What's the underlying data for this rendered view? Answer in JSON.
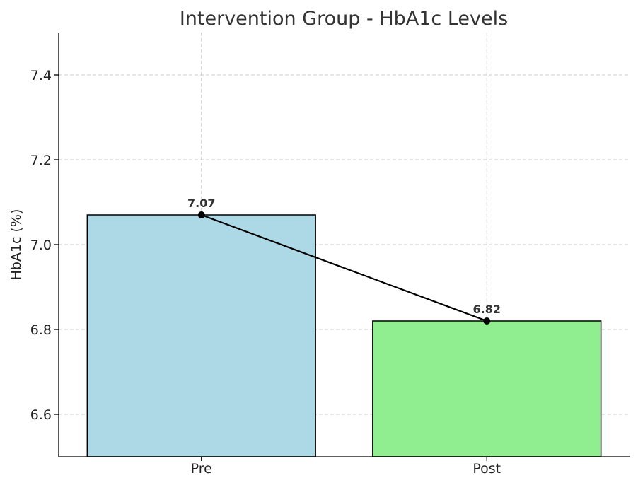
{
  "chart_data": {
    "type": "bar",
    "title": "Intervention Group - HbA1c Levels",
    "xlabel": "",
    "ylabel": "HbA1c (%)",
    "categories": [
      "Pre",
      "Post"
    ],
    "values": [
      7.07,
      6.82
    ],
    "data_labels": [
      "7.07",
      "6.82"
    ],
    "bar_colors": [
      "#add8e6",
      "#90ee90"
    ],
    "edge_color": "#000000",
    "connector_line": {
      "color": "#000000",
      "markers": "circle"
    },
    "ylim": [
      6.5,
      7.5
    ],
    "yticks": [
      6.6,
      6.8,
      7.0,
      7.2,
      7.4
    ],
    "ytick_labels": [
      "6.6",
      "6.8",
      "7.0",
      "7.2",
      "7.4"
    ],
    "grid": true,
    "legend": null
  }
}
